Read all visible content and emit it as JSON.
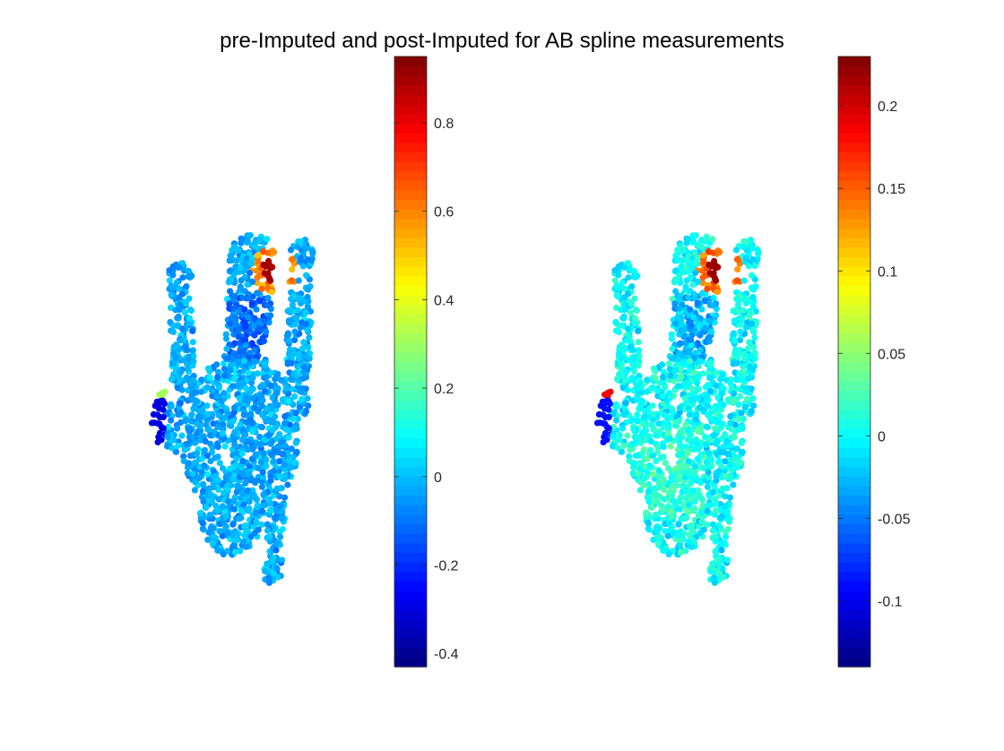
{
  "figure": {
    "title": "pre-Imputed and post-Imputed for AB spline measurements"
  },
  "chart_data": [
    {
      "type": "scatter",
      "panel": "left",
      "colormap": "jet",
      "clim": [
        -0.43,
        0.95
      ],
      "colorbar_ticks": [
        "-0.4",
        "-0.2",
        "0",
        "0.2",
        "0.4",
        "0.6",
        "0.8"
      ],
      "colorbar_tick_values": [
        -0.4,
        -0.2,
        0,
        0.2,
        0.4,
        0.6,
        0.8
      ],
      "hotspot_value": 0.9,
      "background_value_range": [
        -0.15,
        0.1
      ],
      "axes_visible": false,
      "grid": false
    },
    {
      "type": "scatter",
      "panel": "right",
      "colormap": "jet",
      "clim": [
        -0.14,
        0.23
      ],
      "colorbar_ticks": [
        "-0.1",
        "-0.05",
        "0",
        "0.05",
        "0.1",
        "0.15",
        "0.2"
      ],
      "colorbar_tick_values": [
        -0.1,
        -0.05,
        0,
        0.05,
        0.1,
        0.15,
        0.2
      ],
      "hotspot_value": 0.22,
      "background_value_range": [
        -0.04,
        0.04
      ],
      "axes_visible": false,
      "grid": false
    }
  ]
}
